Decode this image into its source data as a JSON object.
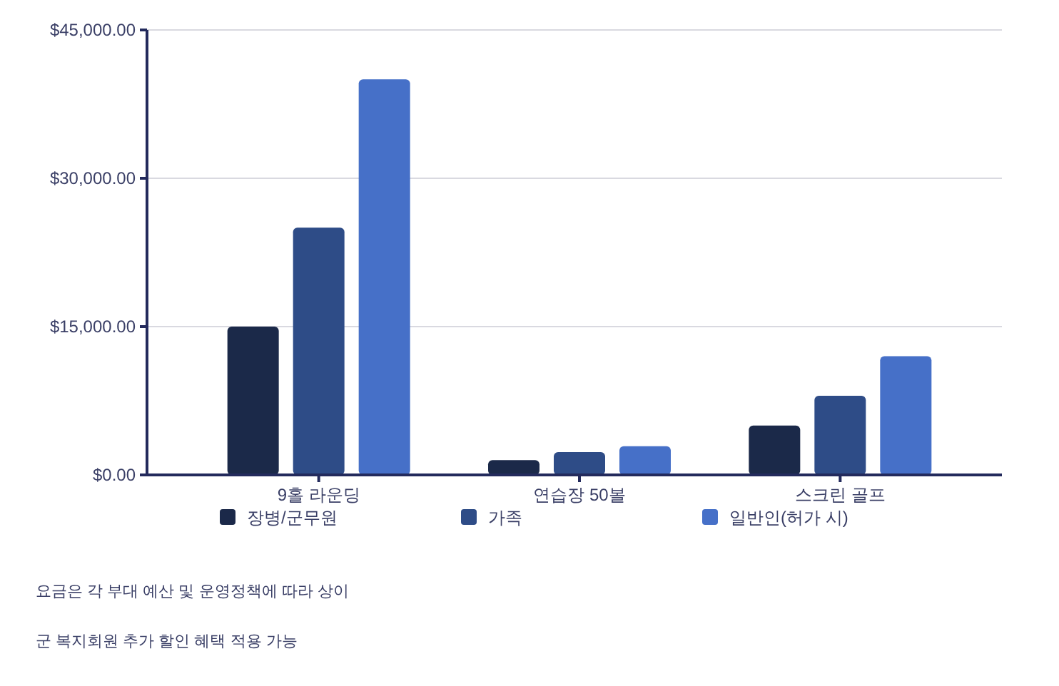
{
  "chart_data": {
    "type": "bar",
    "categories": [
      "9홀 라운딩",
      "연습장 50볼",
      "스크린 골프"
    ],
    "series": [
      {
        "name": "장병/군무원",
        "color": "#1b2949",
        "values": [
          15000,
          1500,
          5000
        ]
      },
      {
        "name": "가족",
        "color": "#2e4c87",
        "values": [
          25000,
          2300,
          8000
        ]
      },
      {
        "name": "일반인(허가 시)",
        "color": "#4670c8",
        "values": [
          40000,
          2900,
          12000
        ]
      }
    ],
    "ylim": [
      0,
      45000
    ],
    "yticks": [
      {
        "value": 0,
        "label": "$0.00"
      },
      {
        "value": 15000,
        "label": "$15,000.00"
      },
      {
        "value": 30000,
        "label": "$30,000.00"
      },
      {
        "value": 45000,
        "label": "$45,000.00"
      }
    ],
    "grid": "y",
    "legend": "bottom",
    "annotations": [
      "요금은 각 부대 예산 및 운영정책에 따라 상이",
      "군 복지회원 추가 할인 혜택 적용 가능"
    ]
  }
}
